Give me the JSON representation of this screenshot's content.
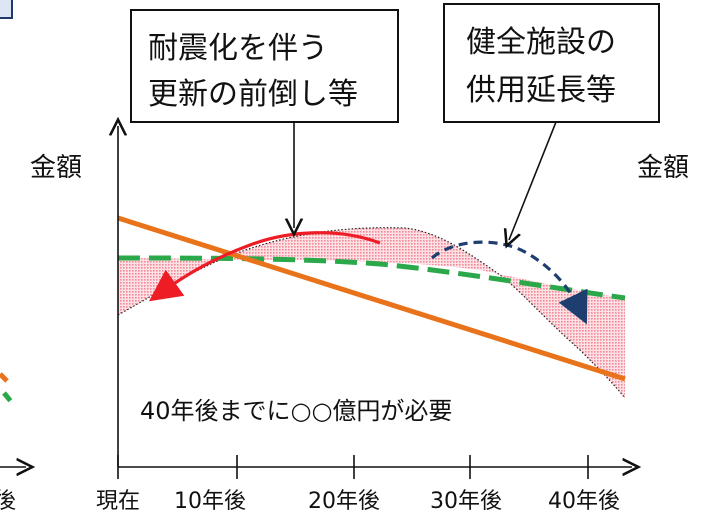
{
  "callouts": {
    "left": {
      "line1": "耐震化を伴う",
      "line2": "更新の前倒し等"
    },
    "right": {
      "line1": "健全施設の",
      "line2": "供用延長等"
    }
  },
  "axis": {
    "y_label": "金額",
    "x_ticks": [
      "現在",
      "10年後",
      "20年後",
      "30年後",
      "40年後"
    ]
  },
  "annotation": "40年後までに○○億円が必要",
  "left_fragment": {
    "tick_label": "後"
  },
  "right_fragment": {
    "y_label": "金額"
  },
  "colors": {
    "orange_line": "#e8731a",
    "green_dashed": "#2aa84a",
    "red_arrow": "#ee1c24",
    "navy_dashed": "#1f3e70",
    "pink_fill": "#f4a6b0",
    "frame": "#1f3a68"
  }
}
